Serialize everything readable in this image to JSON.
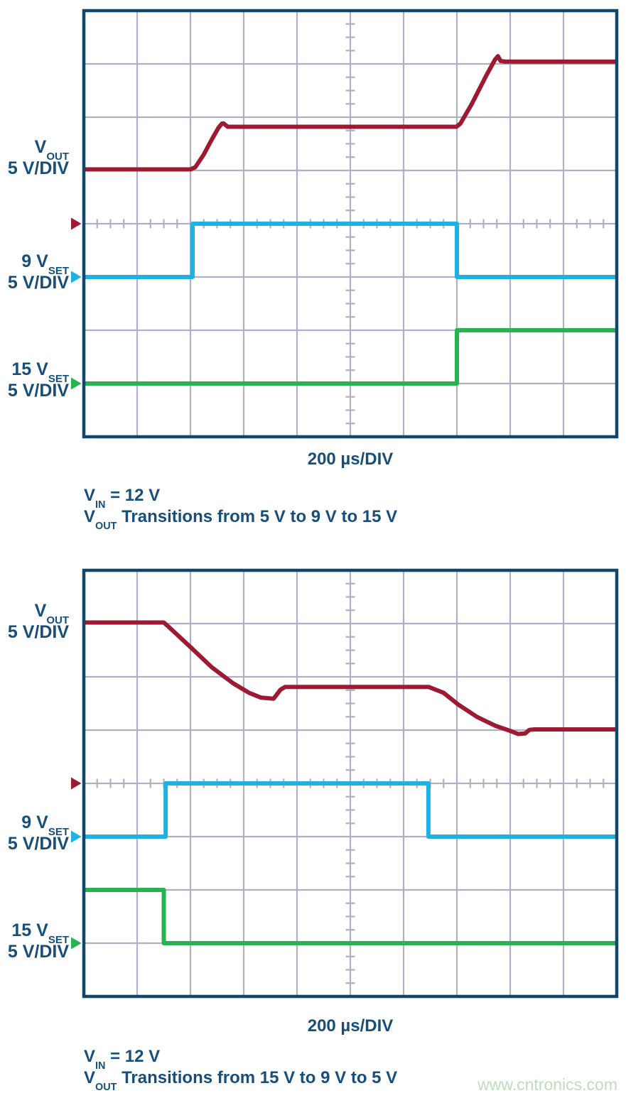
{
  "colors": {
    "background": "#ffffff",
    "border": "#11476d",
    "grid": "#afb0c4",
    "text": "#174e7a",
    "vout": "#9c1b33",
    "vset9": "#1eb1e1",
    "vset15": "#27b350",
    "watermark": "#bcdeb8"
  },
  "watermark": "www.cntronics.com",
  "chart_data": [
    {
      "type": "line",
      "title": "VOUT Transitions from 5 V to 9 V to 15 V",
      "x_per_div_us": 200,
      "x_divisions": 10,
      "y_divisions": 8,
      "xlabel": "200 µs/DIV",
      "grid": "on",
      "caption": {
        "l1_pre": "V",
        "l1_sub": "IN",
        "l1_rest": " = 12 V",
        "l2_pre": "V",
        "l2_sub": "OUT",
        "l2_rest": " Transitions from 5 V to 9 V to 15 V"
      },
      "series": [
        {
          "id": "vout",
          "name": "VOUT",
          "label_pre": "V",
          "label_sub": "OUT",
          "scale": "5 V/DIV",
          "volts_per_div": 5,
          "zero_div_from_top": 4,
          "color": "#9c1b33",
          "points_us_v": [
            [
              0,
              5.1
            ],
            [
              400,
              5.1
            ],
            [
              418,
              5.3
            ],
            [
              450,
              6.5
            ],
            [
              480,
              7.9
            ],
            [
              505,
              9.0
            ],
            [
              518,
              9.4
            ],
            [
              524,
              9.42
            ],
            [
              540,
              9.1
            ],
            [
              1398,
              9.1
            ],
            [
              1413,
              9.4
            ],
            [
              1455,
              11.2
            ],
            [
              1510,
              13.9
            ],
            [
              1543,
              15.4
            ],
            [
              1554,
              15.73
            ],
            [
              1564,
              15.28
            ],
            [
              1580,
              15.22
            ],
            [
              2000,
              15.22
            ]
          ]
        },
        {
          "id": "vset9",
          "name": "9 VSET",
          "label_pre": "9 V",
          "label_sub": "SET",
          "scale": "5 V/DIV",
          "volts_per_div": 5,
          "zero_div_from_top": 5,
          "color": "#1eb1e1",
          "points_us_v": [
            [
              0,
              0
            ],
            [
              408,
              0
            ],
            [
              408,
              5
            ],
            [
              1400,
              5
            ],
            [
              1400,
              0
            ],
            [
              2000,
              0
            ]
          ]
        },
        {
          "id": "vset15",
          "name": "15 VSET",
          "label_pre": "15 V",
          "label_sub": "SET",
          "scale": "5 V/DIV",
          "volts_per_div": 5,
          "zero_div_from_top": 7,
          "color": "#27b350",
          "points_us_v": [
            [
              0,
              0
            ],
            [
              1400,
              0
            ],
            [
              1400,
              5
            ],
            [
              2000,
              5
            ]
          ]
        }
      ]
    },
    {
      "type": "line",
      "title": "VOUT Transitions from 15 V to 9 V to 5 V",
      "x_per_div_us": 200,
      "x_divisions": 10,
      "y_divisions": 8,
      "xlabel": "200 µs/DIV",
      "grid": "on",
      "caption": {
        "l1_pre": "V",
        "l1_sub": "IN",
        "l1_rest": " = 12 V",
        "l2_pre": "V",
        "l2_sub": "OUT",
        "l2_rest": " Transitions from 15 V to 9 V to 5 V"
      },
      "series": [
        {
          "id": "vout",
          "name": "VOUT",
          "label_pre": "V",
          "label_sub": "OUT",
          "scale": "5 V/DIV",
          "volts_per_div": 5,
          "zero_div_from_top": 4,
          "color": "#9c1b33",
          "points_us_v": [
            [
              0,
              15.1
            ],
            [
              300,
              15.1
            ],
            [
              318,
              14.7
            ],
            [
              400,
              12.8
            ],
            [
              480,
              10.9
            ],
            [
              560,
              9.4
            ],
            [
              620,
              8.5
            ],
            [
              665,
              8.05
            ],
            [
              712,
              7.95
            ],
            [
              738,
              8.8
            ],
            [
              755,
              9.05
            ],
            [
              1295,
              9.05
            ],
            [
              1350,
              8.5
            ],
            [
              1405,
              7.4
            ],
            [
              1475,
              6.25
            ],
            [
              1545,
              5.4
            ],
            [
              1598,
              4.95
            ],
            [
              1630,
              4.63
            ],
            [
              1656,
              4.68
            ],
            [
              1672,
              5.02
            ],
            [
              1690,
              5.07
            ],
            [
              2000,
              5.07
            ]
          ]
        },
        {
          "id": "vset9",
          "name": "9 VSET",
          "label_pre": "9 V",
          "label_sub": "SET",
          "scale": "5 V/DIV",
          "volts_per_div": 5,
          "zero_div_from_top": 5,
          "color": "#1eb1e1",
          "points_us_v": [
            [
              0,
              0
            ],
            [
              307,
              0
            ],
            [
              307,
              5
            ],
            [
              1293,
              5
            ],
            [
              1293,
              0
            ],
            [
              2000,
              0
            ]
          ]
        },
        {
          "id": "vset15",
          "name": "15 VSET",
          "label_pre": "15 V",
          "label_sub": "SET",
          "scale": "5 V/DIV",
          "volts_per_div": 5,
          "zero_div_from_top": 7,
          "color": "#27b350",
          "points_us_v": [
            [
              0,
              5
            ],
            [
              300,
              5
            ],
            [
              300,
              0
            ],
            [
              2000,
              0
            ]
          ]
        }
      ]
    }
  ]
}
